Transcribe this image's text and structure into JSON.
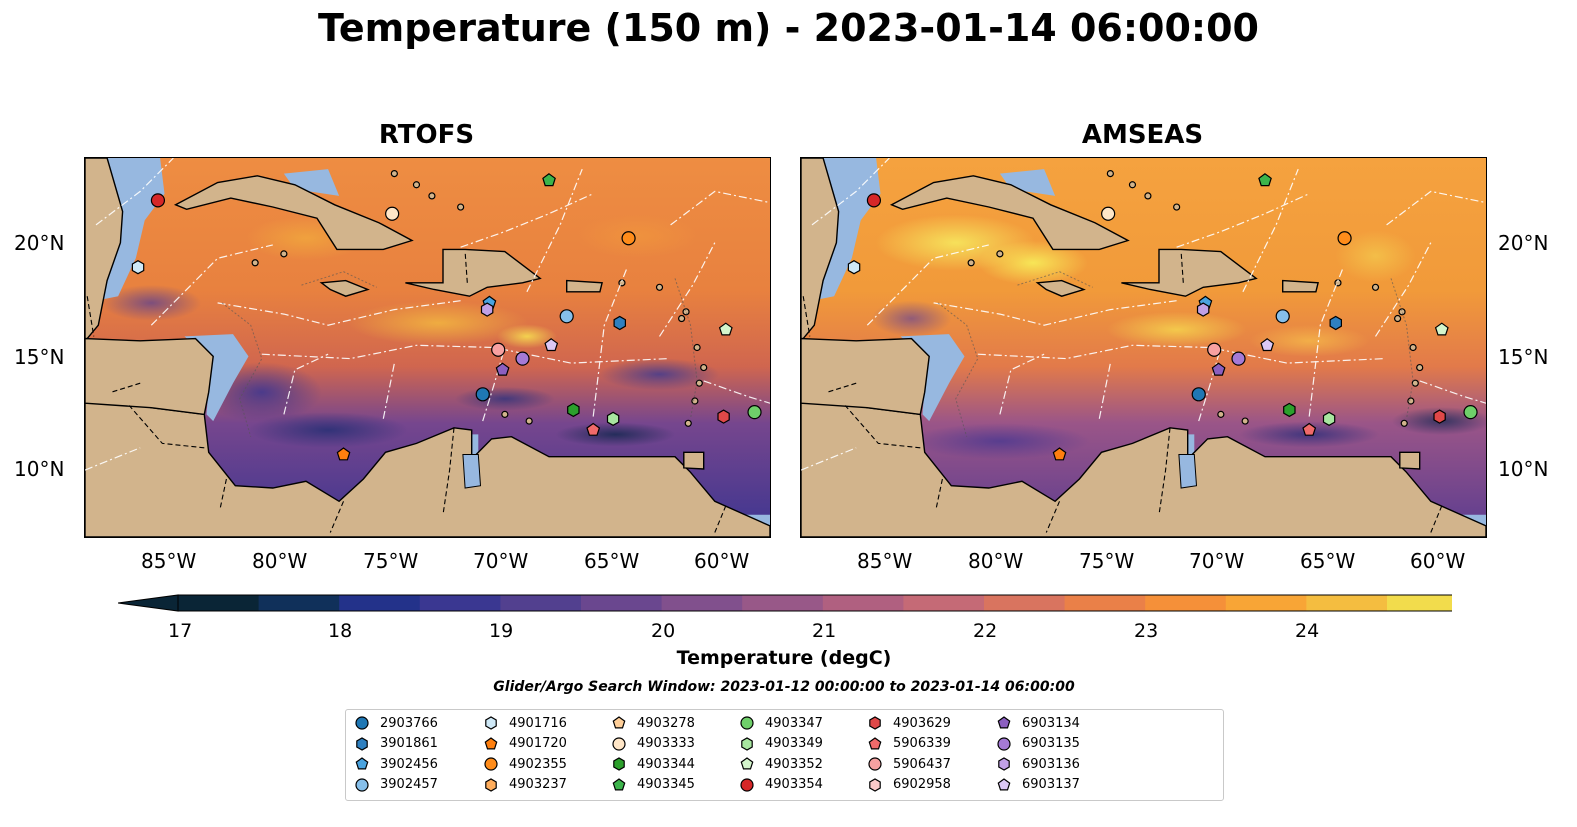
{
  "title": "Temperature (150 m) - 2023-01-14 06:00:00",
  "panels": [
    {
      "title": "RTOFS",
      "style": "warm"
    },
    {
      "title": "AMSEAS",
      "style": "hot"
    }
  ],
  "lon_ticks": [
    "85°W",
    "80°W",
    "75°W",
    "70°W",
    "65°W",
    "60°W"
  ],
  "lat_ticks": [
    "20°N",
    "15°N",
    "10°N"
  ],
  "colorbar": {
    "label": "Temperature (degC)",
    "ticks": [
      "17",
      "18",
      "19",
      "20",
      "21",
      "22",
      "23",
      "24"
    ],
    "range": [
      17,
      24.5
    ],
    "colors": [
      "#0a2536",
      "#10305a",
      "#23328a",
      "#3a3791",
      "#52408f",
      "#6a478f",
      "#81508d",
      "#985888",
      "#b06080",
      "#c56a76",
      "#d9745f",
      "#ea8048",
      "#f59039",
      "#f8a536",
      "#f4bd40",
      "#f2dc4c"
    ]
  },
  "search_window": "Glider/Argo Search Window: 2023-01-12 00:00:00 to 2023-01-14 06:00:00",
  "legend": [
    {
      "id": "2903766",
      "marker": "circle",
      "color": "#1f77b4"
    },
    {
      "id": "3901861",
      "marker": "hexagon",
      "color": "#2f80c0"
    },
    {
      "id": "3902456",
      "marker": "pentagon",
      "color": "#4aa3df"
    },
    {
      "id": "3902457",
      "marker": "circle",
      "color": "#86bfea"
    },
    {
      "id": "4901716",
      "marker": "hexagon",
      "color": "#cfe9f7"
    },
    {
      "id": "4901720",
      "marker": "pentagon",
      "color": "#ff7f0e"
    },
    {
      "id": "4902355",
      "marker": "circle",
      "color": "#ff8c1a"
    },
    {
      "id": "4903237",
      "marker": "hexagon",
      "color": "#ffad5c"
    },
    {
      "id": "4903278",
      "marker": "pentagon",
      "color": "#ffcf99"
    },
    {
      "id": "4903333",
      "marker": "circle",
      "color": "#ffe6c7"
    },
    {
      "id": "4903344",
      "marker": "hexagon",
      "color": "#2ca02c"
    },
    {
      "id": "4903345",
      "marker": "pentagon",
      "color": "#3cb44b"
    },
    {
      "id": "4903347",
      "marker": "circle",
      "color": "#6fcf6a"
    },
    {
      "id": "4903349",
      "marker": "hexagon",
      "color": "#a8e6a0"
    },
    {
      "id": "4903352",
      "marker": "pentagon",
      "color": "#d4f5cc"
    },
    {
      "id": "4903354",
      "marker": "circle",
      "color": "#d62728"
    },
    {
      "id": "4903629",
      "marker": "hexagon",
      "color": "#e04848"
    },
    {
      "id": "5906339",
      "marker": "pentagon",
      "color": "#f06a6a"
    },
    {
      "id": "5906437",
      "marker": "circle",
      "color": "#f7a1a1"
    },
    {
      "id": "6902958",
      "marker": "hexagon",
      "color": "#fbcaca"
    },
    {
      "id": "6903134",
      "marker": "pentagon",
      "color": "#8c5fc0"
    },
    {
      "id": "6903135",
      "marker": "circle",
      "color": "#a57ad6"
    },
    {
      "id": "6903136",
      "marker": "hexagon",
      "color": "#c0a0e6"
    },
    {
      "id": "6903137",
      "marker": "pentagon",
      "color": "#dcc8f5"
    }
  ],
  "floats": [
    {
      "id": "4903354",
      "lon": -85.7,
      "lat": 22.1
    },
    {
      "id": "4901716",
      "lon": -86.6,
      "lat": 19.1
    },
    {
      "id": "4903333",
      "lon": -75.1,
      "lat": 21.5
    },
    {
      "id": "4903345",
      "lon": -68.0,
      "lat": 23.0
    },
    {
      "id": "4902355",
      "lon": -64.4,
      "lat": 20.4
    },
    {
      "id": "3902456",
      "lon": -70.7,
      "lat": 17.5
    },
    {
      "id": "6903136",
      "lon": -70.8,
      "lat": 17.2
    },
    {
      "id": "3902457",
      "lon": -67.2,
      "lat": 16.9
    },
    {
      "id": "3901861",
      "lon": -64.8,
      "lat": 16.6
    },
    {
      "id": "4903352",
      "lon": -60.0,
      "lat": 16.3
    },
    {
      "id": "6903137",
      "lon": -67.9,
      "lat": 15.6
    },
    {
      "id": "5906437",
      "lon": -70.3,
      "lat": 15.4
    },
    {
      "id": "6903135",
      "lon": -69.2,
      "lat": 15.0
    },
    {
      "id": "6903134",
      "lon": -70.1,
      "lat": 14.5
    },
    {
      "id": "2903766",
      "lon": -71.0,
      "lat": 13.4
    },
    {
      "id": "4903344",
      "lon": -66.9,
      "lat": 12.7
    },
    {
      "id": "4903349",
      "lon": -65.1,
      "lat": 12.3
    },
    {
      "id": "5906339",
      "lon": -66.0,
      "lat": 11.8
    },
    {
      "id": "4903629",
      "lon": -60.1,
      "lat": 12.4
    },
    {
      "id": "4903347",
      "lon": -58.7,
      "lat": 12.6
    },
    {
      "id": "4901720",
      "lon": -77.3,
      "lat": 10.7
    }
  ],
  "map_extent": {
    "lon": [
      -89,
      -58
    ],
    "lat": [
      7,
      24
    ]
  }
}
